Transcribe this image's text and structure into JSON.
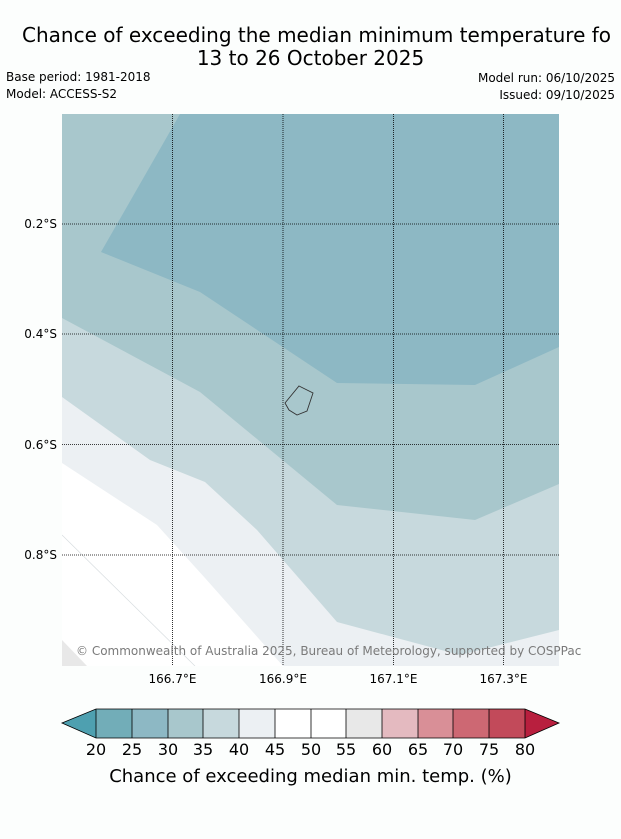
{
  "title_line1": "Chance of exceeding the median minimum temperature fo",
  "title_line2": "13 to 26 October 2025",
  "base_period": "Base period: 1981-2018",
  "model": "Model: ACCESS-S2",
  "model_run": "Model run: 06/10/2025",
  "issued": "Issued: 09/10/2025",
  "copyright": "© Commonwealth of Australia 2025, Bureau of Meteorology, supported by COSPPac",
  "lat_labels": [
    "0.2°S",
    "0.4°S",
    "0.6°S",
    "0.8°S"
  ],
  "lon_labels": [
    "166.7°E",
    "166.9°E",
    "167.1°E",
    "167.3°E"
  ],
  "colorbar": {
    "label": "Chance of exceeding median min. temp. (%)",
    "ticks": [
      "20",
      "25",
      "30",
      "35",
      "40",
      "45",
      "50",
      "55",
      "60",
      "65",
      "70",
      "75",
      "80"
    ],
    "colors": {
      "under_20": "#4ea0b0",
      "20_25": "#72adb8",
      "25_30": "#8db8c4",
      "30_35": "#a8c7cc",
      "35_40": "#c7d9dd",
      "40_45": "#ecf0f3",
      "45_50": "#ffffff",
      "50_55": "#ffffff",
      "55_60": "#e8e8e8",
      "60_65": "#e4bac0",
      "65_70": "#d98f97",
      "70_75": "#cd6873",
      "75_80": "#c24a5a",
      "over_80": "#b81f3e"
    }
  }
}
